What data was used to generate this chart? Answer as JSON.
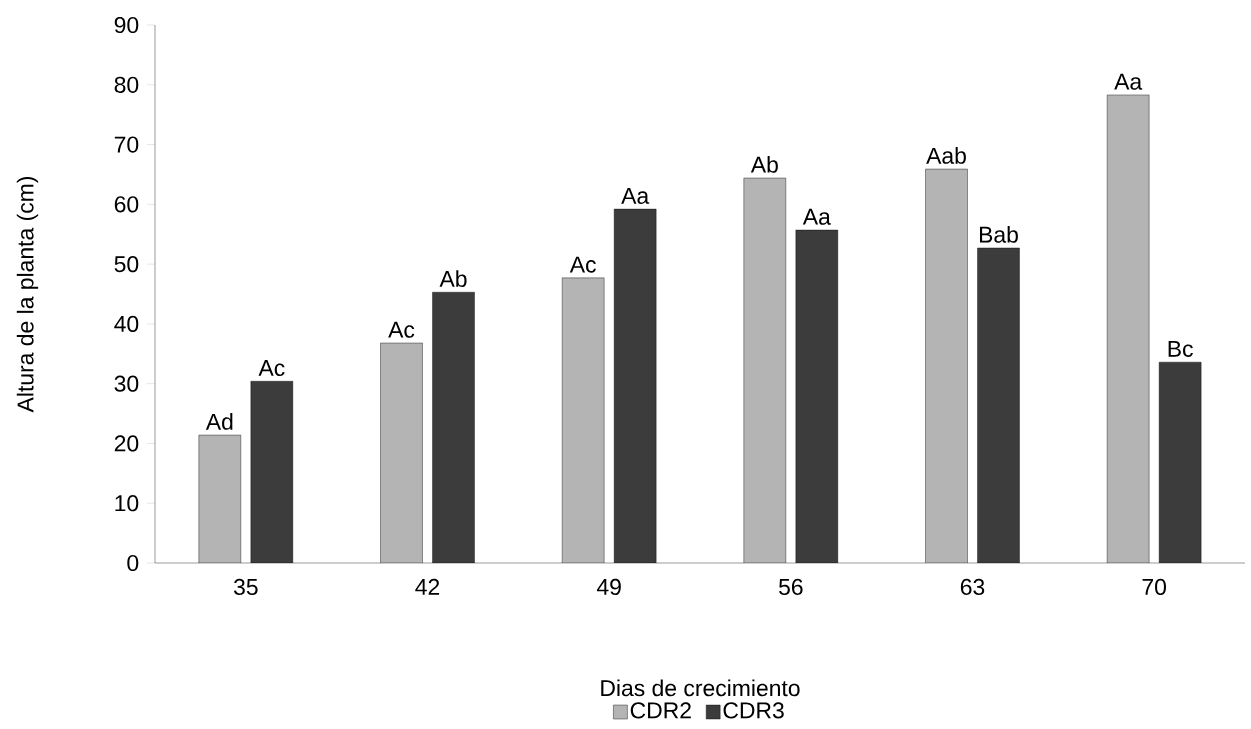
{
  "chart_data": {
    "type": "bar",
    "xlabel": "Dias de crecimiento",
    "ylabel": "Altura de la planta (cm)",
    "categories": [
      "35",
      "42",
      "49",
      "56",
      "63",
      "70"
    ],
    "series": [
      {
        "name": "CDR2",
        "color": "#b4b4b4",
        "values": [
          21.4,
          36.8,
          47.7,
          64.4,
          65.9,
          78.3
        ],
        "value_labels": [
          "Ad",
          "Ac",
          "Ac",
          "Ab",
          "Aab",
          "Aa"
        ]
      },
      {
        "name": "CDR3",
        "color": "#3c3c3c",
        "values": [
          30.4,
          45.3,
          59.2,
          55.7,
          52.7,
          33.6
        ],
        "value_labels": [
          "Ac",
          "Ab",
          "Aa",
          "Aa",
          "Bab",
          "Bc"
        ]
      }
    ],
    "ylim": [
      0,
      90
    ],
    "yticks": [
      0,
      10,
      20,
      30,
      40,
      50,
      60,
      70,
      80,
      90
    ],
    "grid": false,
    "legend": "bottom"
  }
}
